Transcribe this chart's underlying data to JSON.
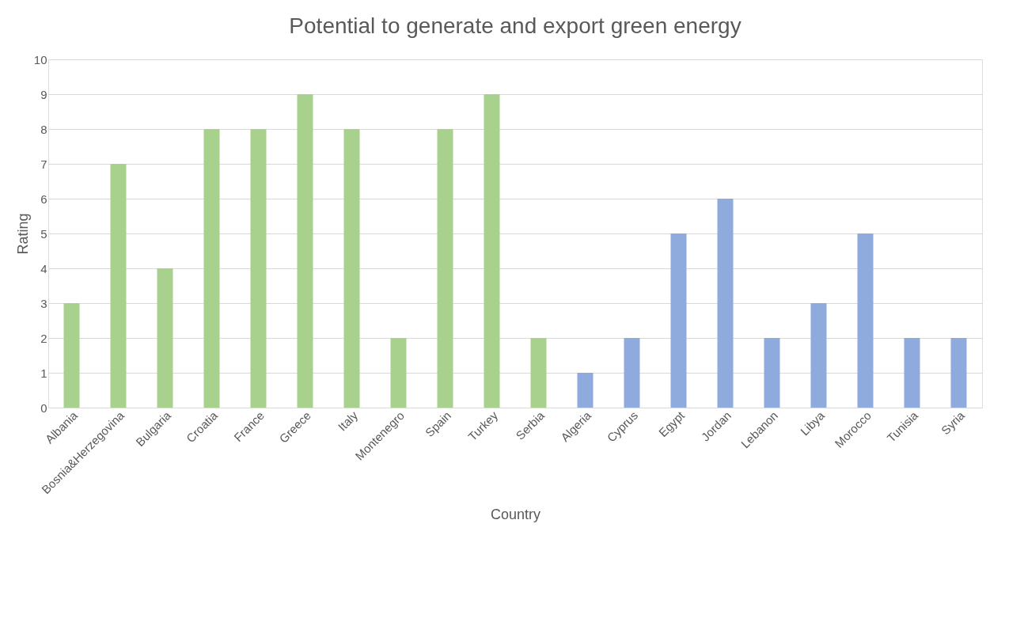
{
  "chart_data": {
    "type": "bar",
    "title": "Potential to generate and export green energy",
    "xlabel": "Country",
    "ylabel": "Rating",
    "categories": [
      "Albania",
      "Bosnia&Herzegovina",
      "Bulgaria",
      "Croatia",
      "France",
      "Greece",
      "Italy",
      "Montenegro",
      "Spain",
      "Turkey",
      "Serbia",
      "Algeria",
      "Cyprus",
      "Egypt",
      "Jordan",
      "Lebanon",
      "Libya",
      "Morocco",
      "Tunisia",
      "Syria"
    ],
    "values": [
      3,
      7,
      4,
      8,
      8,
      9,
      8,
      2,
      8,
      9,
      2,
      1,
      2,
      5,
      6,
      2,
      3,
      5,
      2,
      2
    ],
    "colors": [
      "#a9d18e",
      "#a9d18e",
      "#a9d18e",
      "#a9d18e",
      "#a9d18e",
      "#a9d18e",
      "#a9d18e",
      "#a9d18e",
      "#a9d18e",
      "#a9d18e",
      "#a9d18e",
      "#8faadc",
      "#8faadc",
      "#8faadc",
      "#8faadc",
      "#8faadc",
      "#8faadc",
      "#8faadc",
      "#8faadc",
      "#8faadc"
    ],
    "ylim": [
      0,
      10
    ],
    "yticks": [
      0,
      1,
      2,
      3,
      4,
      5,
      6,
      7,
      8,
      9,
      10
    ],
    "grid": "y",
    "legend": false
  }
}
